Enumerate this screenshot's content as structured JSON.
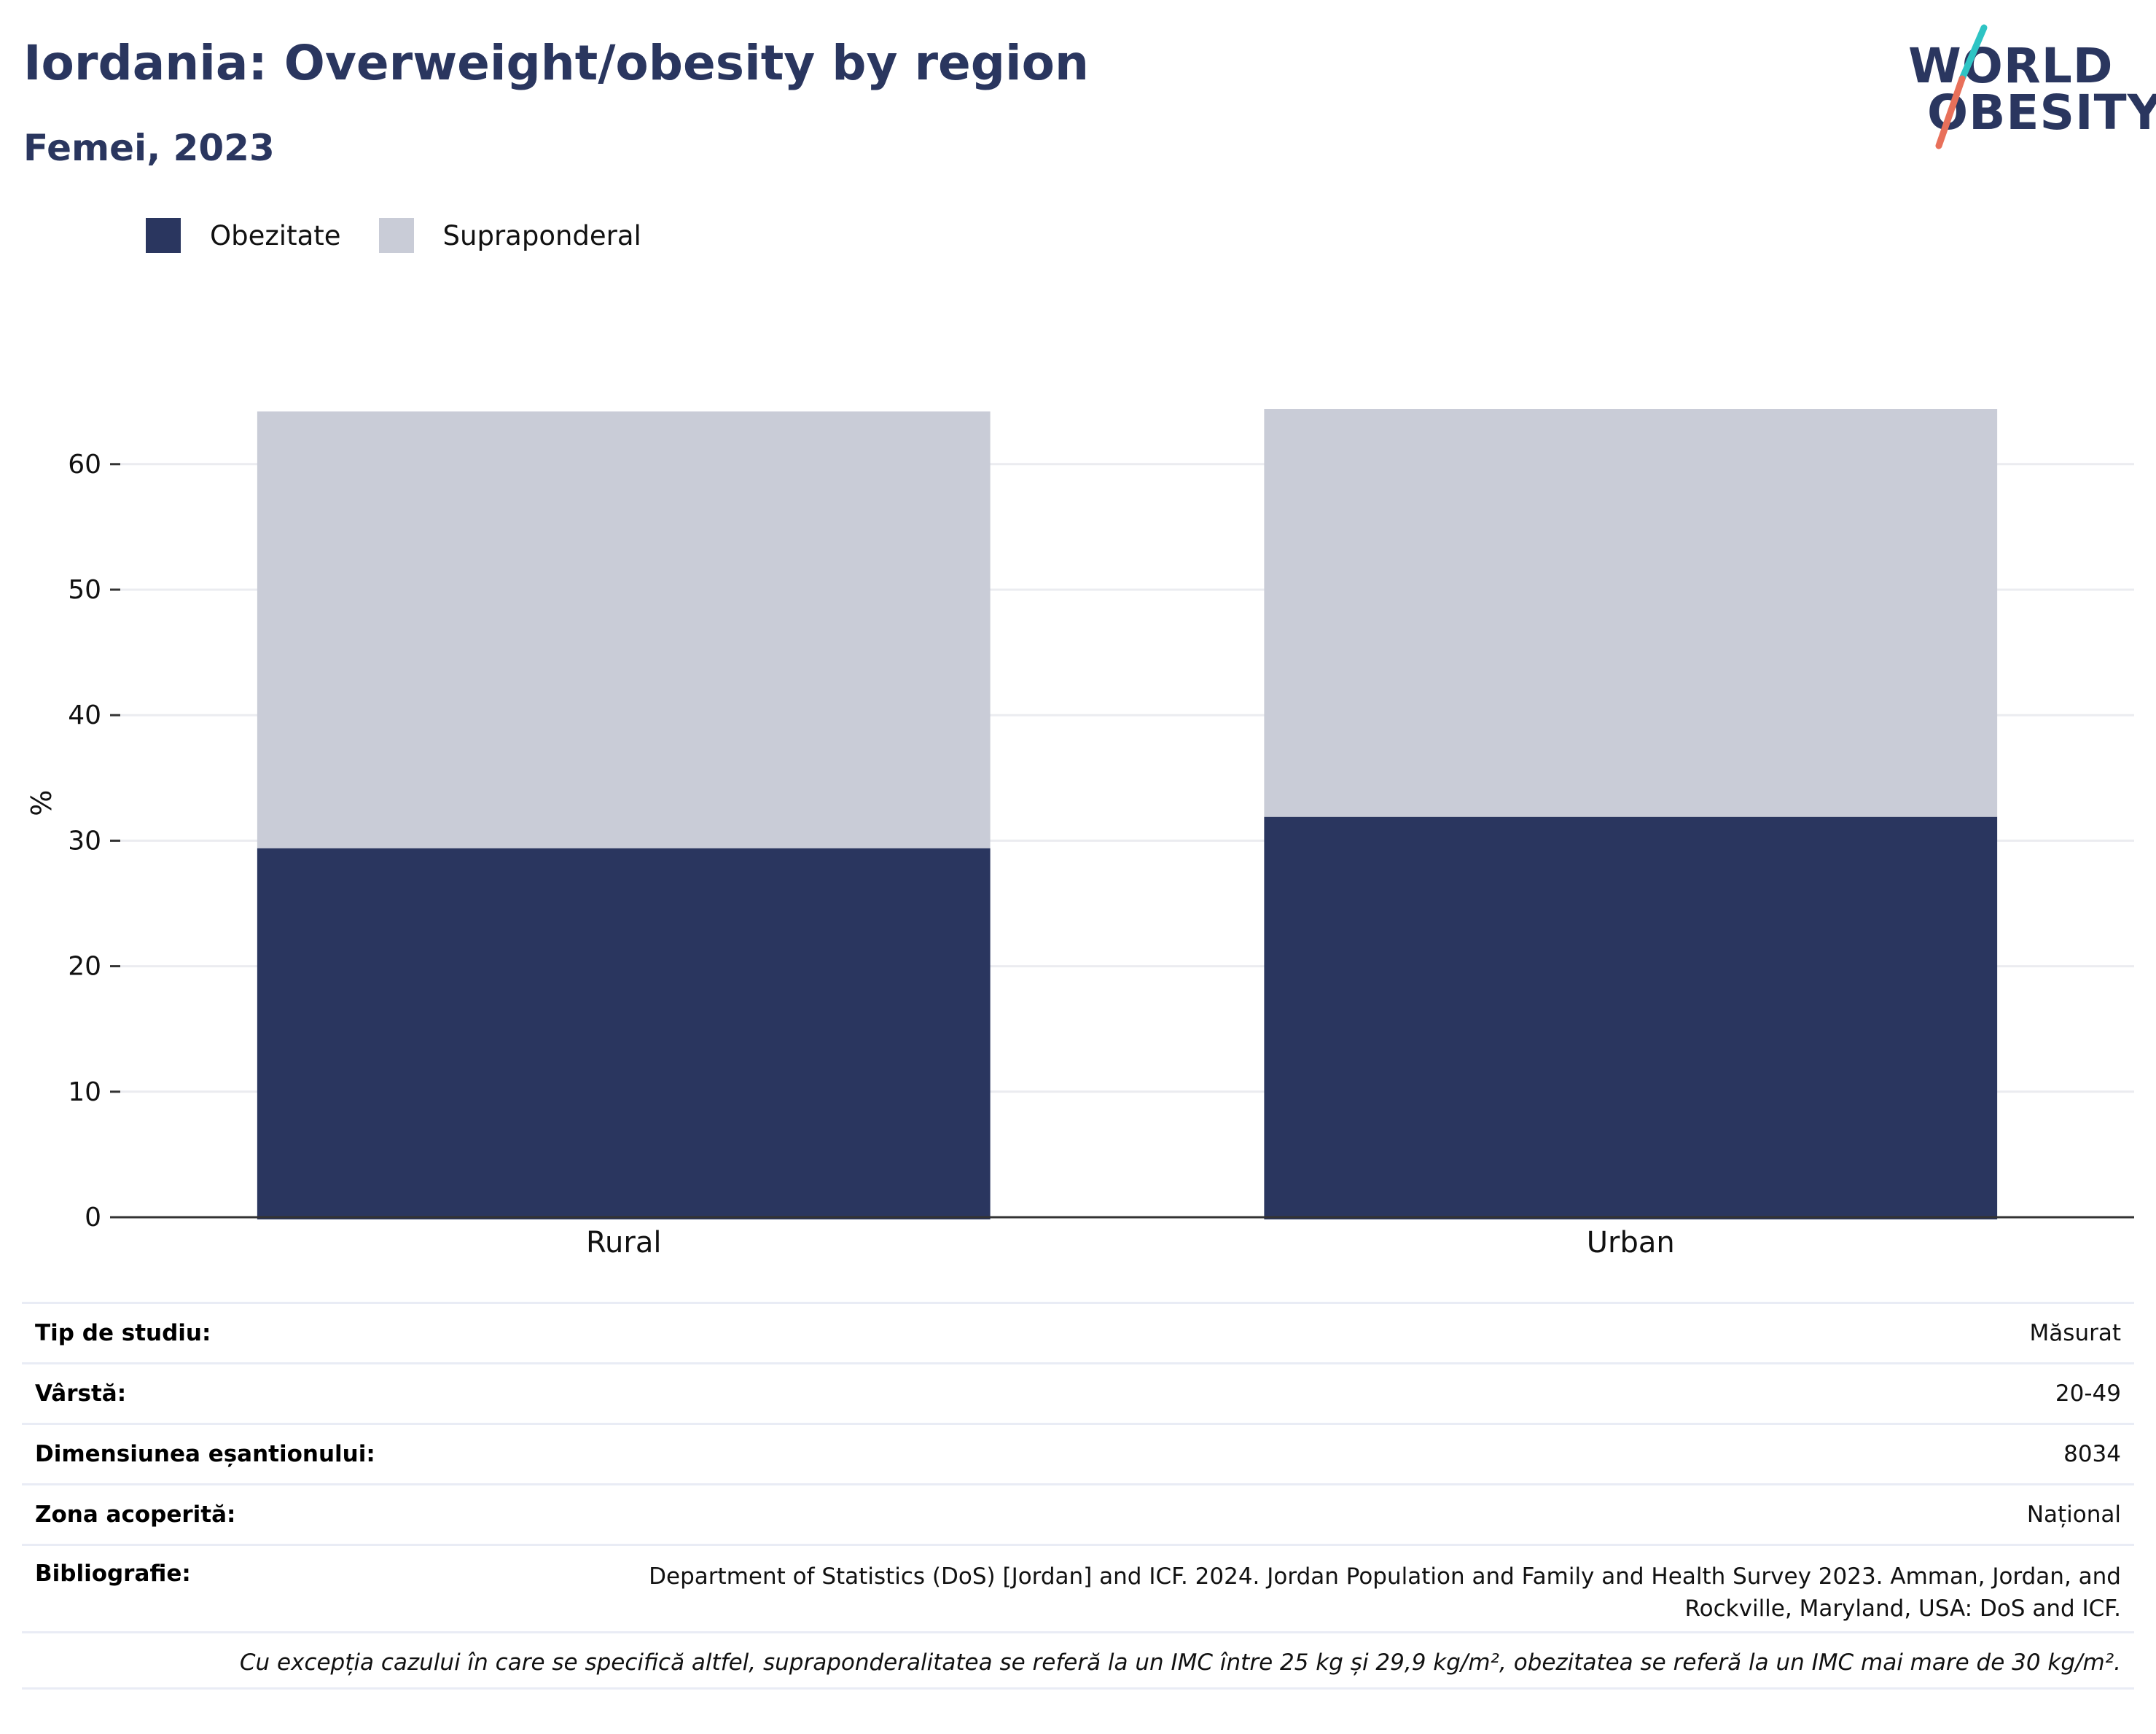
{
  "header": {
    "title": "Iordania: Overweight/obesity by region",
    "subtitle": "Femei, 2023"
  },
  "logo": {
    "line1": "WORLD",
    "line2": "OBESITY",
    "accent_colors": [
      "#2ec4c4",
      "#e8705a"
    ]
  },
  "legend": [
    {
      "label": "Obezitate",
      "color": "#2a365f"
    },
    {
      "label": "Supraponderal",
      "color": "#c9ccd7"
    }
  ],
  "chart_data": {
    "type": "bar",
    "stacked": true,
    "categories": [
      "Rural",
      "Urban"
    ],
    "series": [
      {
        "name": "Obezitate",
        "values": [
          29.4,
          31.9
        ],
        "color": "#2a365f"
      },
      {
        "name": "Supraponderal",
        "values": [
          34.8,
          32.5
        ],
        "color": "#c9ccd7"
      }
    ],
    "ylabel": "%",
    "ylim": [
      0,
      70
    ],
    "yticks": [
      0,
      10,
      20,
      30,
      40,
      50,
      60
    ],
    "grid": true,
    "legend_position": "top-left"
  },
  "meta": {
    "rows": [
      {
        "key": "Tip de studiu:",
        "value": "Măsurat"
      },
      {
        "key": "Vârstă:",
        "value": "20-49"
      },
      {
        "key": "Dimensiunea eșantionului:",
        "value": "8034"
      },
      {
        "key": "Zona acoperită:",
        "value": "Național"
      },
      {
        "key": "Bibliografie:",
        "value": "Department of Statistics (DoS) [Jordan] and ICF. 2024. Jordan Population and Family and Health Survey 2023. Amman, Jordan, and Rockville, Maryland, USA: DoS and ICF."
      }
    ],
    "note": "Cu excepția cazului în care se specifică altfel, supraponderalitatea se referă la un IMC între 25 kg și 29,9 kg/m², obezitatea se referă la un IMC mai mare de 30 kg/m²."
  }
}
